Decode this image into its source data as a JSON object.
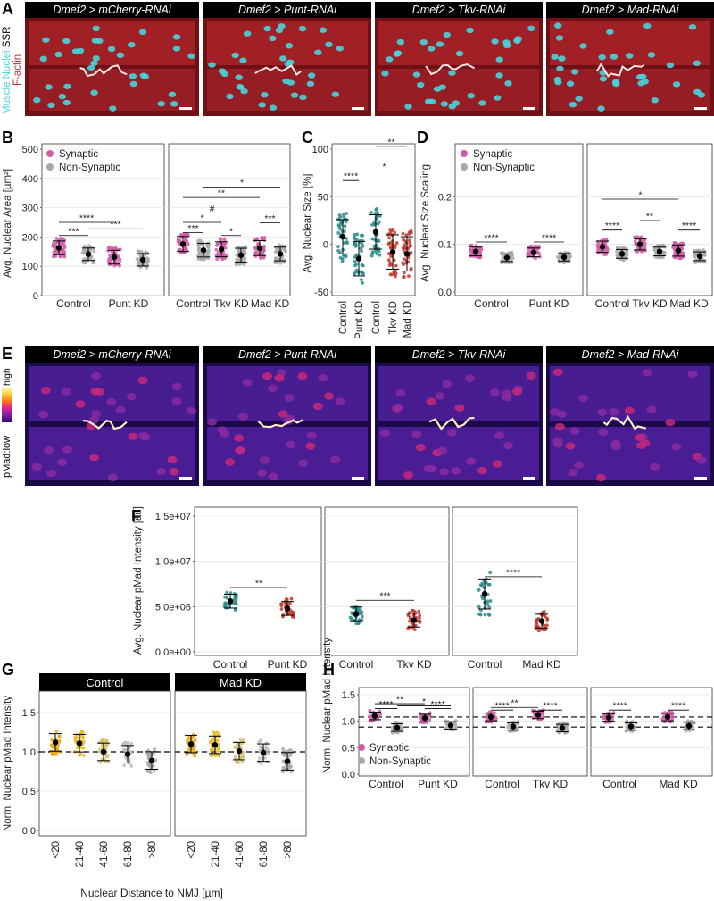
{
  "panel_labels": {
    "A": "A",
    "B": "B",
    "C": "C",
    "D": "D",
    "E": "E",
    "F": "F",
    "G": "G",
    "H": "H"
  },
  "panel_a": {
    "titles": [
      "Dmef2 > mCherry-RNAi",
      "Dmef2 > Punt-RNAi",
      "Dmef2 > Tkv-RNAi",
      "Dmef2 > Mad-RNAi"
    ],
    "channel_labels": {
      "ssr": "SSR",
      "nuclei": "Muscle Nuclei",
      "factin": "F-actin"
    },
    "colors": {
      "factin": "#c0262b",
      "nuclei": "#47d4dd",
      "ssr": "#ffffff"
    }
  },
  "panel_e": {
    "titles": [
      "Dmef2 > mCherry-RNAi",
      "Dmef2 > Punt-RNAi",
      "Dmef2 > Tkv-RNAi",
      "Dmef2 > Mad-RNAi"
    ],
    "scale_high": "high",
    "scale_low": "low",
    "scale_prefix": "pMad:"
  },
  "legend": {
    "synaptic": "Synaptic",
    "non_synaptic": "Non-Synaptic"
  },
  "colors": {
    "synaptic": "#cf5ea8",
    "non_synaptic": "#a9a9a9",
    "teal": "#2a8c8c",
    "red": "#c0392b",
    "mean": "#000000"
  },
  "chart_data": [
    {
      "id": "B",
      "type": "scatter",
      "ylabel": "Avg. Nuclear Area [µm²]",
      "ylim": [
        0,
        500
      ],
      "yticks": [
        "0",
        "100",
        "200",
        "300",
        "400",
        "500"
      ],
      "legend": [
        "Synaptic",
        "Non-Synaptic"
      ],
      "legend_position": "top-left",
      "facets": [
        {
          "categories": [
            "Control",
            "Punt KD"
          ],
          "synaptic": [
            163,
            131
          ],
          "non_synaptic": [
            141,
            122
          ]
        },
        {
          "categories": [
            "Control",
            "Tkv KD",
            "Mad KD"
          ],
          "synaptic": [
            176,
            158,
            162
          ],
          "non_synaptic": [
            155,
            138,
            142
          ]
        }
      ],
      "significance": [
        "***",
        "****",
        "***",
        "*",
        "**",
        "*",
        "#",
        "*",
        "***"
      ]
    },
    {
      "id": "C",
      "type": "scatter",
      "ylabel": "Avg. Nuclear Size [%]",
      "ylim": [
        -50,
        100
      ],
      "yticks": [
        "-50",
        "0",
        "50",
        "100"
      ],
      "categories": [
        "Control",
        "Punt KD",
        "Control",
        "Tkv KD",
        "Mad KD"
      ],
      "values": [
        8,
        -15,
        13,
        -8,
        -10
      ],
      "significance": [
        "****",
        "*",
        "**"
      ]
    },
    {
      "id": "D",
      "type": "scatter",
      "ylabel": "Avg. Nuclear Size Scaling",
      "ylim": [
        0,
        0.3
      ],
      "yticks": [
        "0.0",
        "0.1",
        "0.2"
      ],
      "legend": [
        "Synaptic",
        "Non-Synaptic"
      ],
      "legend_position": "top-left",
      "facets": [
        {
          "categories": [
            "Control",
            "Punt KD"
          ],
          "synaptic": [
            0.085,
            0.083
          ],
          "non_synaptic": [
            0.072,
            0.073
          ]
        },
        {
          "categories": [
            "Control",
            "Tkv KD",
            "Mad KD"
          ],
          "synaptic": [
            0.095,
            0.1,
            0.087
          ],
          "non_synaptic": [
            0.08,
            0.085,
            0.075
          ]
        }
      ],
      "significance": [
        "****",
        "****",
        "****",
        "**",
        "*",
        "****"
      ]
    },
    {
      "id": "F",
      "type": "scatter",
      "ylabel": "Avg. Nuclear pMad Intensity [au]",
      "ylim": [
        0,
        15000000
      ],
      "yticks": [
        "0.0e+00",
        "5.0e+06",
        "1.0e+07",
        "1.5e+07"
      ],
      "facets": [
        {
          "categories": [
            "Control",
            "Punt KD"
          ],
          "values": [
            5600000,
            4800000
          ],
          "significance": "**"
        },
        {
          "categories": [
            "Control",
            "Tkv KD"
          ],
          "values": [
            4200000,
            3500000
          ],
          "significance": "***"
        },
        {
          "categories": [
            "Control",
            "Mad KD"
          ],
          "values": [
            6400000,
            3400000
          ],
          "significance": "****"
        }
      ]
    },
    {
      "id": "G",
      "type": "scatter",
      "ylabel": "Norm. Nuclear pMad Intensity",
      "xlabel": "Nuclear Distance to NMJ [µm]",
      "ylim": [
        0,
        1.5
      ],
      "yticks": [
        "0.0",
        "0.5",
        "1.0",
        "1.5"
      ],
      "facets": [
        {
          "title": "Control",
          "categories": [
            "<20",
            "21-40",
            "41-60",
            "61-80",
            ">80"
          ],
          "values": [
            1.12,
            1.11,
            1.0,
            0.97,
            0.89
          ]
        },
        {
          "title": "Mad KD",
          "categories": [
            "<20",
            "21-40",
            "41-60",
            "61-80",
            ">80"
          ],
          "values": [
            1.1,
            1.09,
            1.01,
            0.99,
            0.88
          ]
        }
      ],
      "reference_line": 1.0
    },
    {
      "id": "H",
      "type": "scatter",
      "ylabel": "Norm. Nuclear pMad Intensity",
      "ylim": [
        0,
        1.5
      ],
      "yticks": [
        "0.0",
        "0.5",
        "1.0",
        "1.5"
      ],
      "legend": [
        "Synaptic",
        "Non-Synaptic"
      ],
      "legend_position": "bottom-left",
      "facets": [
        {
          "categories": [
            "Control",
            "Punt KD"
          ],
          "synaptic": [
            1.1,
            1.06
          ],
          "non_synaptic": [
            0.88,
            0.92
          ],
          "significance": [
            "****",
            "*",
            "****",
            "**"
          ]
        },
        {
          "categories": [
            "Control",
            "Tkv KD"
          ],
          "synaptic": [
            1.08,
            1.12
          ],
          "non_synaptic": [
            0.9,
            0.87
          ],
          "significance": [
            "****",
            "**",
            "****"
          ]
        },
        {
          "categories": [
            "Control",
            "Mad KD"
          ],
          "synaptic": [
            1.07,
            1.08
          ],
          "non_synaptic": [
            0.9,
            0.91
          ],
          "significance": [
            "****",
            "****"
          ]
        }
      ],
      "reference_lines": [
        1.08,
        0.89
      ]
    }
  ]
}
